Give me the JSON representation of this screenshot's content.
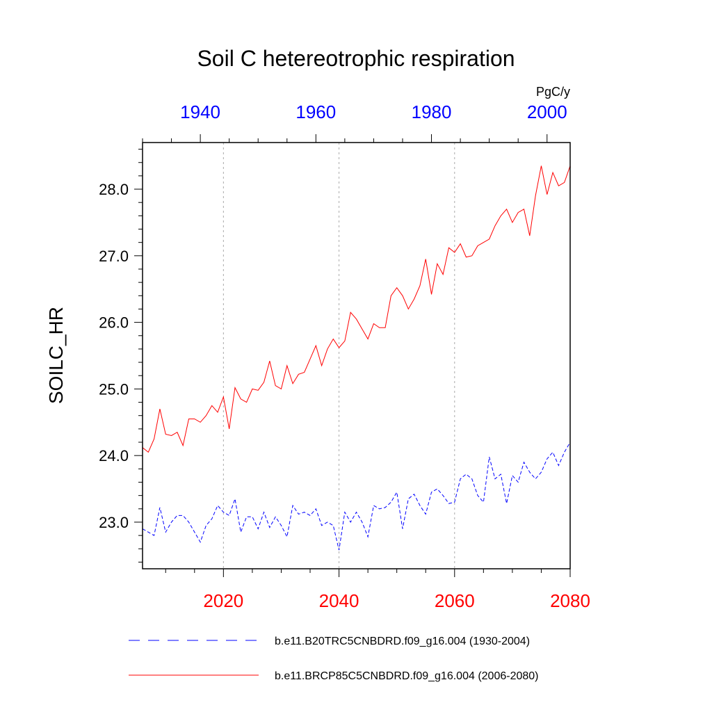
{
  "chart_data": {
    "type": "line",
    "title": "Soil C hetereotrophic respiration",
    "units": "PgC/y",
    "ylabel": "SOILC_HR",
    "ylim": [
      22.3,
      28.7
    ],
    "y_ticks": [
      23.0,
      24.0,
      25.0,
      26.0,
      27.0,
      28.0
    ],
    "y_tick_labels": [
      "23.0",
      "24.0",
      "25.0",
      "26.0",
      "27.0",
      "28.0"
    ],
    "x_bottom": {
      "range": [
        2006,
        2080
      ],
      "ticks": [
        2020,
        2040,
        2060,
        2080
      ],
      "tick_labels": [
        "2020",
        "2040",
        "2060",
        "2080"
      ],
      "color": "#ff0000"
    },
    "x_top": {
      "range": [
        1930,
        2004
      ],
      "ticks": [
        1940,
        1960,
        1980,
        2000
      ],
      "tick_labels": [
        "1940",
        "1960",
        "1980",
        "2000"
      ],
      "color": "#0000ff"
    },
    "series": [
      {
        "name": "b.e11.B20TRC5CNBDRD.f09_g16.004 (1930-2004)",
        "axis": "top",
        "start": 1930,
        "color": "#0000ff",
        "style": "dashed",
        "values": [
          22.9,
          22.85,
          22.8,
          23.22,
          22.85,
          23.0,
          23.1,
          23.1,
          23.0,
          22.85,
          22.7,
          22.95,
          23.05,
          23.25,
          23.15,
          23.1,
          23.35,
          22.85,
          23.08,
          23.08,
          22.9,
          23.15,
          22.92,
          23.08,
          22.95,
          22.78,
          23.25,
          23.12,
          23.15,
          23.1,
          23.2,
          22.95,
          23.0,
          22.95,
          22.58,
          23.15,
          23.0,
          23.15,
          23.0,
          22.78,
          23.25,
          23.2,
          23.22,
          23.3,
          23.45,
          22.9,
          23.35,
          23.42,
          23.25,
          23.12,
          23.45,
          23.5,
          23.4,
          23.28,
          23.3,
          23.65,
          23.72,
          23.65,
          23.4,
          23.3,
          23.98,
          23.65,
          23.72,
          23.28,
          23.7,
          23.6,
          23.9,
          23.75,
          23.65,
          23.75,
          23.95,
          24.05,
          23.85,
          24.05,
          24.2
        ]
      },
      {
        "name": "b.e11.BRCP85C5CNBDRD.f09_g16.004 (2006-2080)",
        "axis": "bottom",
        "start": 2006,
        "color": "#ff0000",
        "style": "solid",
        "values": [
          24.12,
          24.05,
          24.25,
          24.7,
          24.32,
          24.3,
          24.35,
          24.15,
          24.55,
          24.55,
          24.5,
          24.6,
          24.75,
          24.65,
          24.88,
          24.4,
          25.02,
          24.85,
          24.8,
          25.0,
          24.98,
          25.1,
          25.42,
          25.05,
          25.0,
          25.35,
          25.08,
          25.22,
          25.25,
          25.45,
          25.65,
          25.35,
          25.6,
          25.75,
          25.62,
          25.72,
          26.15,
          26.05,
          25.9,
          25.75,
          25.98,
          25.92,
          25.92,
          26.4,
          26.52,
          26.4,
          26.2,
          26.35,
          26.55,
          26.95,
          26.42,
          26.88,
          26.72,
          27.12,
          27.05,
          27.18,
          26.98,
          27.0,
          27.15,
          27.2,
          27.25,
          27.45,
          27.6,
          27.7,
          27.5,
          27.65,
          27.7,
          27.3,
          27.9,
          28.35,
          27.92,
          28.25,
          28.05,
          28.1,
          28.35
        ]
      }
    ]
  }
}
